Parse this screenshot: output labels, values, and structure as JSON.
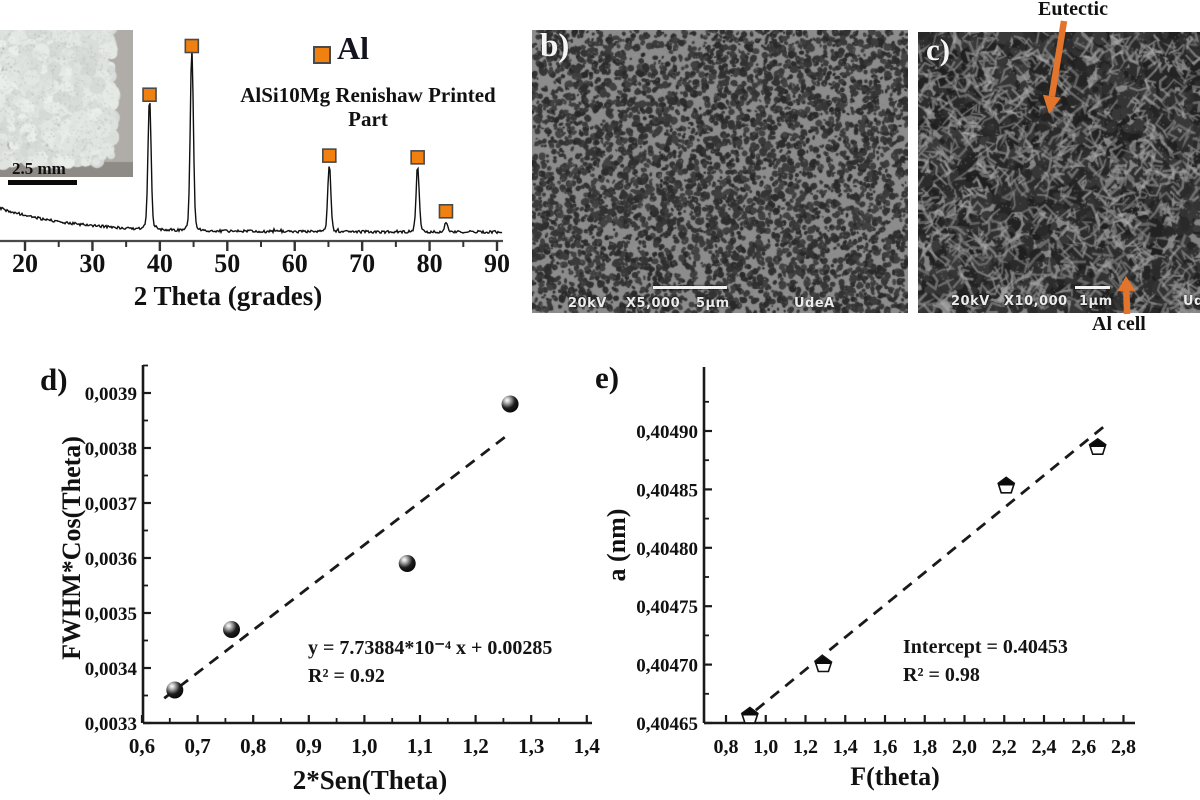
{
  "colors": {
    "accent_orange": "#F0800F",
    "marker_border": "#4a4a4a",
    "arrow_orange": "#E2752B",
    "curve_black": "#101010"
  },
  "panels": {
    "a": {
      "inset_scale_label": "2.5 mm",
      "legend_label": "Al",
      "title": "AlSi10Mg Renishaw Printed Part",
      "xlabel": "2 Theta (grades)"
    },
    "b": {
      "label": "b)",
      "voltage": "20kV",
      "magnification": "X5,000",
      "scale_label": "5μm",
      "lab": "UdeA"
    },
    "c": {
      "label": "c)",
      "voltage": "20kV",
      "magnification": "X10,000",
      "scale_label": "1μm",
      "lab": "Ud",
      "annotation_top": "Eutectic",
      "annotation_bottom": "Al cell"
    },
    "d": {
      "label": "d)",
      "xlabel": "2*Sen(Theta)",
      "ylabel": "FWHM*Cos(Theta)",
      "annotation_line1": "y = 7.73884*10⁻⁴ x + 0.00285",
      "annotation_line2": "R² = 0.92"
    },
    "e": {
      "label": "e)",
      "xlabel": "F(theta)",
      "ylabel": "a (nm)",
      "annotation_line1": "Intercept = 0.40453",
      "annotation_line2": "R² = 0.98"
    }
  },
  "chart_data": [
    {
      "id": "a-xrd-pattern",
      "type": "line",
      "title": "AlSi10Mg Renishaw Printed Part",
      "xlabel": "2 Theta (grades)",
      "ylabel": "",
      "xlim": [
        16.3,
        90.8
      ],
      "xticks": [
        20,
        30,
        40,
        50,
        60,
        70,
        80,
        90
      ],
      "xtick_labels": [
        "20",
        "30",
        "40",
        "50",
        "60",
        "70",
        "80",
        "90"
      ],
      "legend": [
        {
          "label": "Al",
          "marker": "orange-square"
        }
      ],
      "peaks": [
        {
          "two_theta": 38.47,
          "rel_intensity": 0.72
        },
        {
          "two_theta": 44.74,
          "rel_intensity": 1.0
        },
        {
          "two_theta": 65.13,
          "rel_intensity": 0.37
        },
        {
          "two_theta": 78.23,
          "rel_intensity": 0.36
        },
        {
          "two_theta": 82.43,
          "rel_intensity": 0.05
        }
      ],
      "background": "amorphous hump decaying from low angle",
      "inset": {
        "type": "photo",
        "scale_label": "2.5 mm"
      }
    },
    {
      "id": "d-williamson-hall",
      "type": "scatter",
      "xlabel": "2*Sen(Theta)",
      "ylabel": "FWHM*Cos(Theta)",
      "xlim": [
        0.6,
        1.4
      ],
      "ylim": [
        0.0033,
        0.0039
      ],
      "xticks": {
        "values": [
          0.6,
          0.7,
          0.8,
          0.9,
          1.0,
          1.1,
          1.2,
          1.3,
          1.4
        ],
        "labels": [
          "0,6",
          "0,7",
          "0,8",
          "0,9",
          "1,0",
          "1,1",
          "1,2",
          "1,3",
          "1,4"
        ]
      },
      "yticks": {
        "values": [
          0.0033,
          0.0034,
          0.0035,
          0.0036,
          0.0037,
          0.0038,
          0.0039
        ],
        "labels": [
          "0,0033",
          "0,0034",
          "0,0035",
          "0,0036",
          "0,0037",
          "0,0038",
          "0,0039"
        ]
      },
      "points": [
        [
          0.659,
          0.00336
        ],
        [
          0.761,
          0.00347
        ],
        [
          1.077,
          0.00359
        ],
        [
          1.262,
          0.00388
        ]
      ],
      "fit_line": {
        "x1": 0.64,
        "y1": 0.003345,
        "x2": 1.262,
        "y2": 0.003827,
        "style": "dashed"
      },
      "marker": "filled-sphere",
      "annotation_lines": [
        "y = 7.73884*10⁻⁴ x + 0.00285",
        "R² = 0.92"
      ]
    },
    {
      "id": "e-nelson-riley",
      "type": "scatter",
      "xlabel": "F(theta)",
      "ylabel": "a (nm)",
      "xlim": [
        0.8,
        2.8
      ],
      "ylim": [
        0.40465,
        0.4049
      ],
      "xticks": {
        "values": [
          0.8,
          1.0,
          1.2,
          1.4,
          1.6,
          1.8,
          2.0,
          2.2,
          2.4,
          2.6,
          2.8
        ],
        "labels": [
          "0,8",
          "1,0",
          "1,2",
          "1,4",
          "1,6",
          "1,8",
          "2,0",
          "2,2",
          "2,4",
          "2,6",
          "2,8"
        ]
      },
      "yticks": {
        "values": [
          0.40465,
          0.4047,
          0.40475,
          0.4048,
          0.40485,
          0.4049
        ],
        "labels": [
          "0,40465",
          "0,40470",
          "0,40475",
          "0,40480",
          "0,40485",
          "0,40490"
        ]
      },
      "points": [
        [
          0.92,
          0.404656
        ],
        [
          1.29,
          0.4047
        ],
        [
          2.21,
          0.404853
        ],
        [
          2.67,
          0.404886
        ]
      ],
      "fit_line": {
        "x1": 0.95,
        "y1": 0.404661,
        "x2": 2.71,
        "y2": 0.404905,
        "style": "dashed"
      },
      "marker": "half-filled-pentagon",
      "annotation_lines": [
        "Intercept = 0.40453",
        "R² = 0.98"
      ]
    }
  ]
}
